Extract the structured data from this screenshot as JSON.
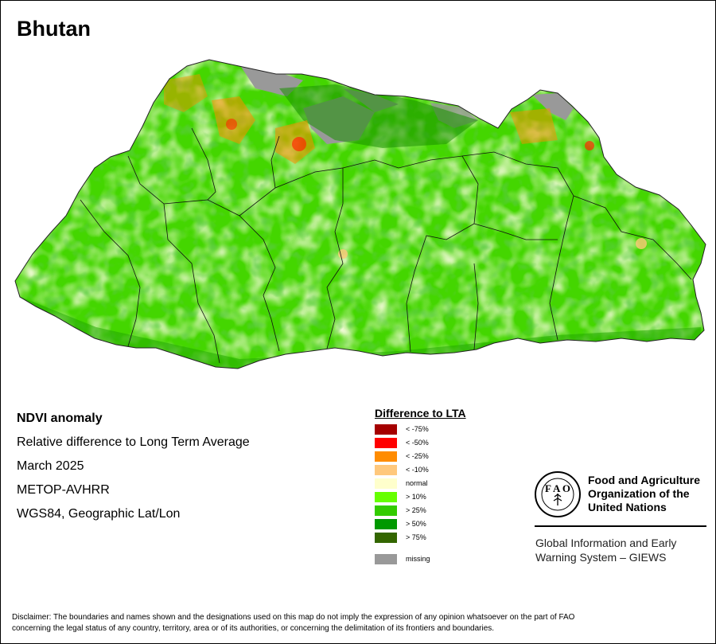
{
  "country": "Bhutan",
  "info": {
    "product": "NDVI anomaly",
    "description": "Relative difference to Long Term Average",
    "period": "March 2025",
    "sensor": "METOP-AVHRR",
    "projection": "WGS84, Geographic Lat/Lon"
  },
  "legend": {
    "title": "Difference to LTA",
    "items": [
      {
        "label": "< -75%",
        "color": "#a50000"
      },
      {
        "label": "< -50%",
        "color": "#ff0000"
      },
      {
        "label": "< -25%",
        "color": "#ff8c00"
      },
      {
        "label": "< -10%",
        "color": "#ffc87c"
      },
      {
        "label": "normal",
        "color": "#ffffcc"
      },
      {
        "label": "> 10%",
        "color": "#66ff00"
      },
      {
        "label": "> 25%",
        "color": "#33cc00"
      },
      {
        "label": "> 50%",
        "color": "#009900"
      },
      {
        "label": "> 75%",
        "color": "#336600"
      },
      {
        "label": "missing",
        "color": "#999999"
      }
    ]
  },
  "organization": {
    "line1": "Food and Agriculture",
    "line2": "Organization of the",
    "line3": "United Nations",
    "emblem_text": "FIAT PANIS",
    "system_line1": "Global Information and Early",
    "system_line2": "Warning System – GIEWS"
  },
  "disclaimer_line1": "Disclaimer: The boundaries and names shown and the designations used on this map do not imply the expression of any opinion whatsoever on the part of FAO",
  "disclaimer_line2": "concerning the legal status of any country, territory, area or of its authorities, or concerning the delimitation of its frontiers and boundaries."
}
